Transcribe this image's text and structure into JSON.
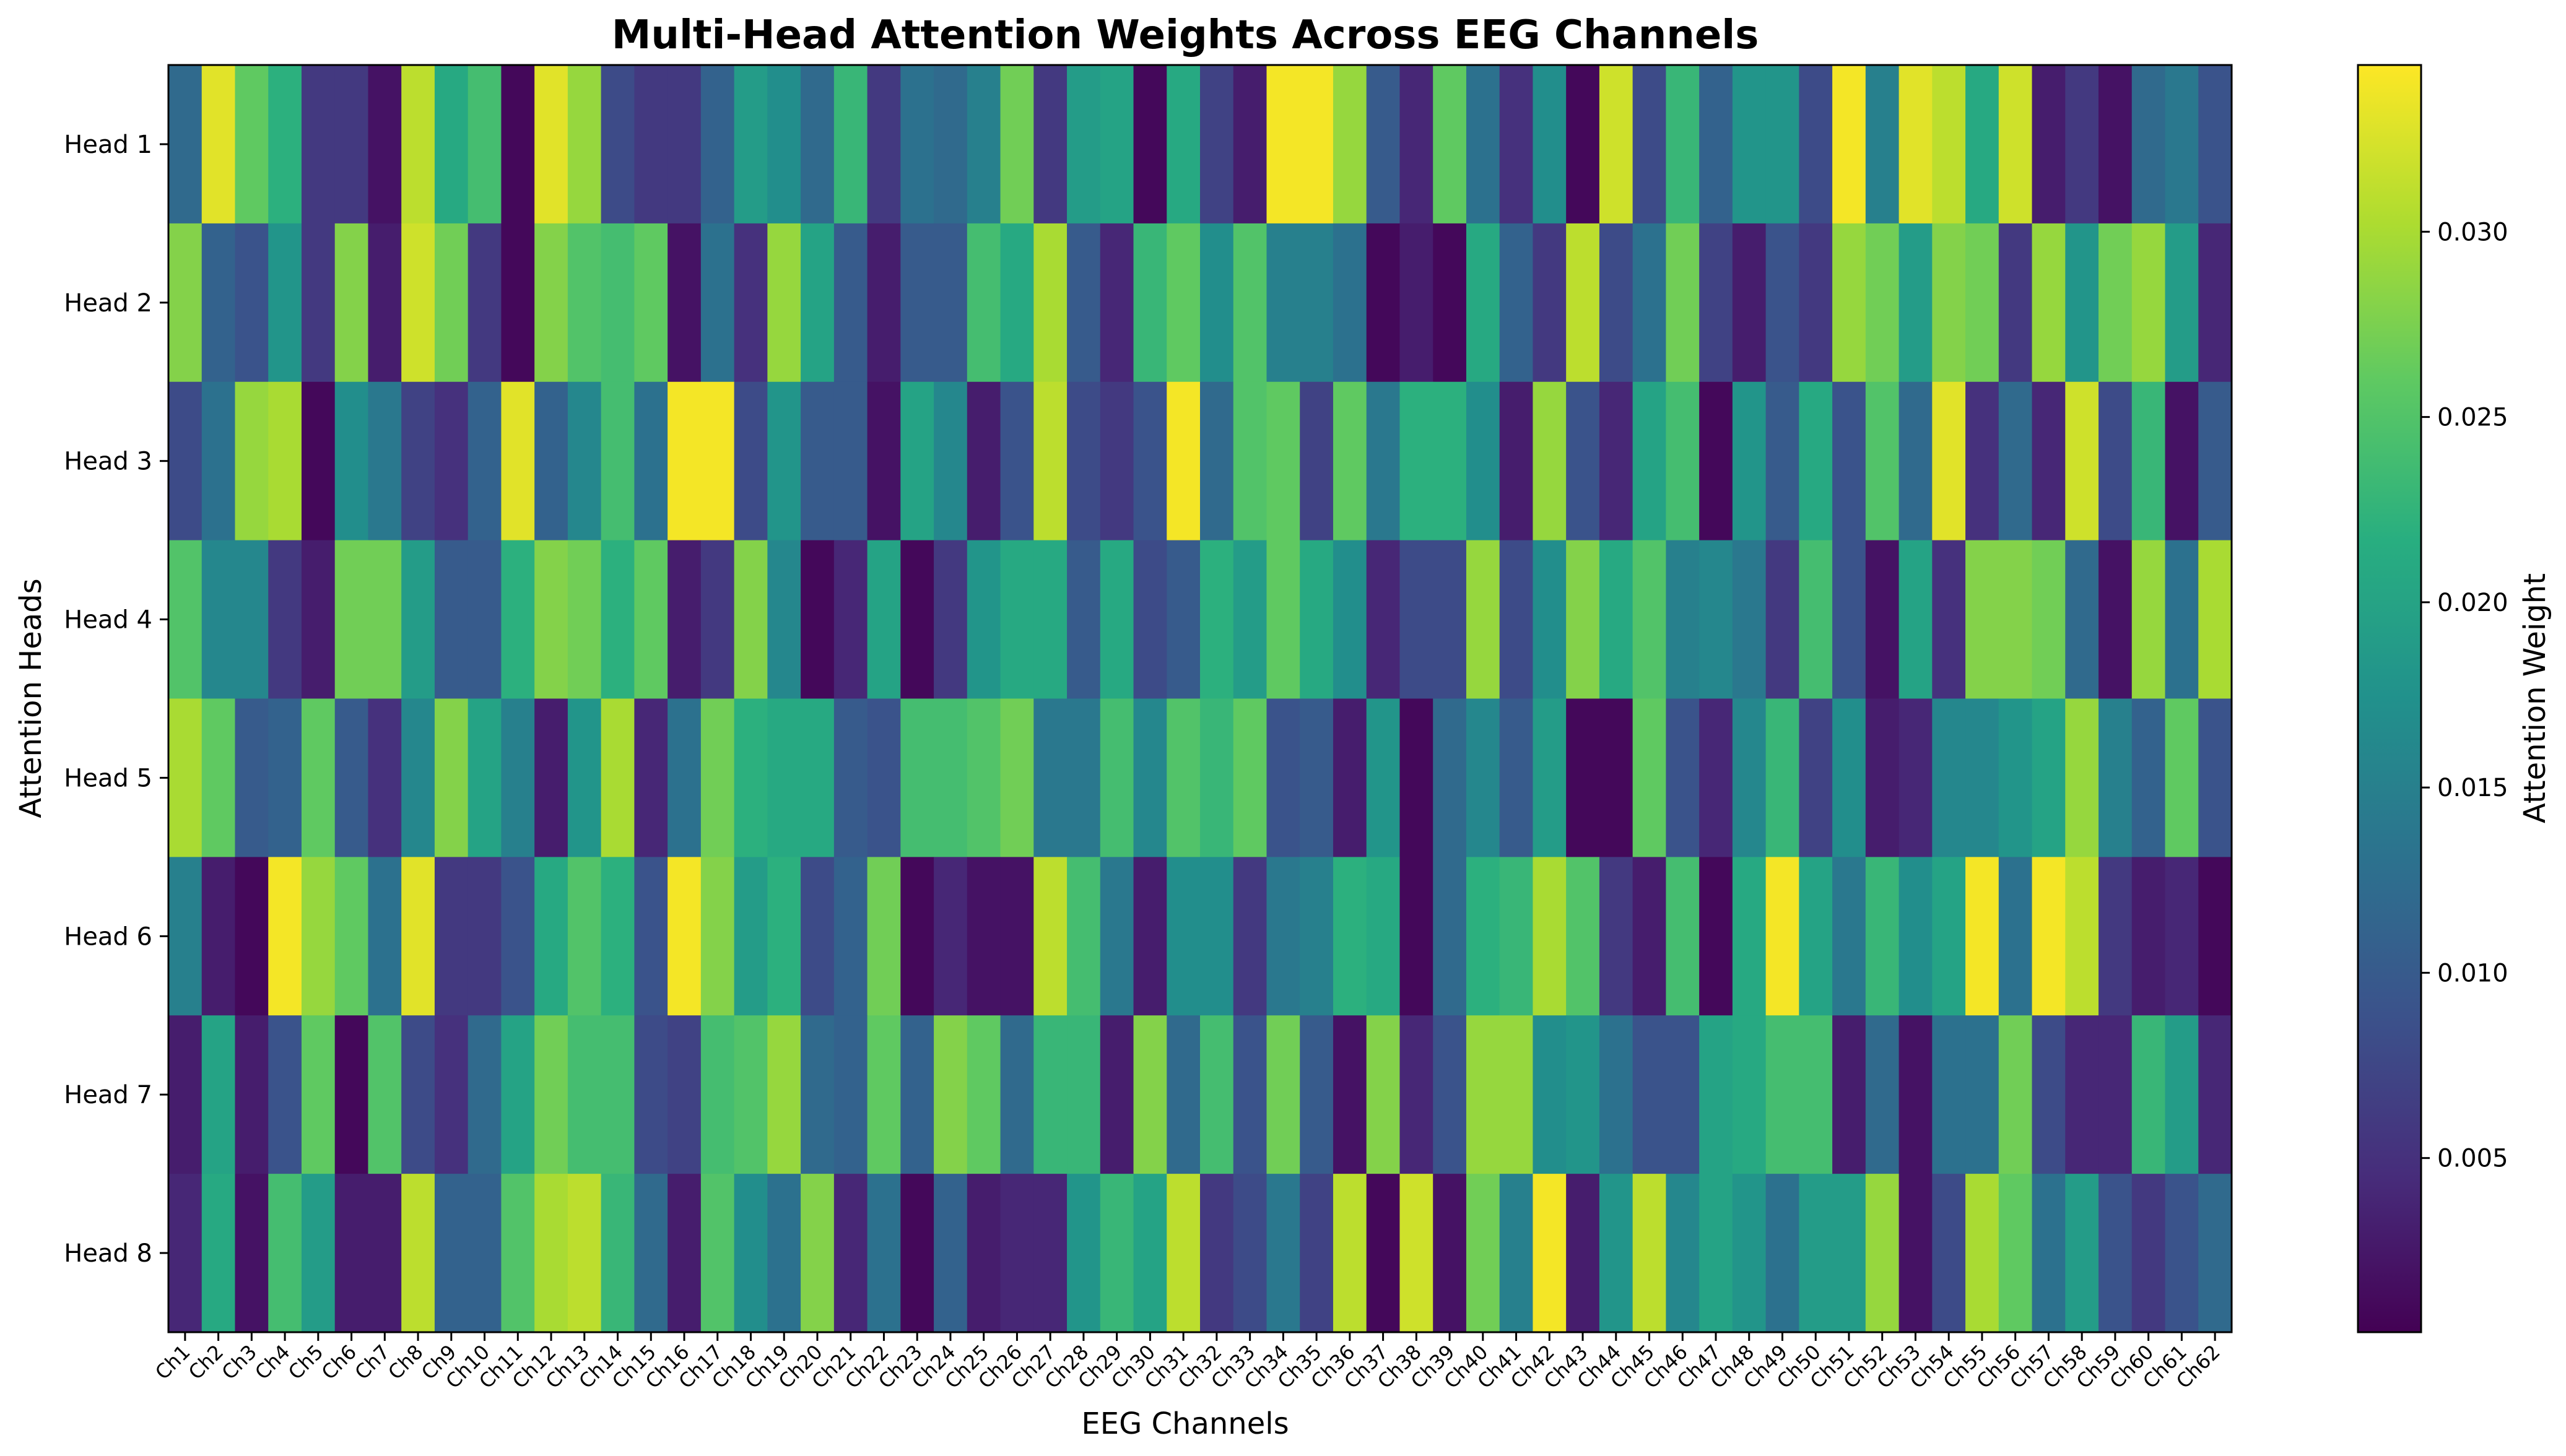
{
  "chart_data": {
    "type": "heatmap",
    "title": "Multi-Head Attention Weights Across EEG Channels",
    "xlabel": "EEG Channels",
    "ylabel": "Attention Heads",
    "colorbar_label": "Attention Weight",
    "colormap": "viridis",
    "value_range": [
      0.0003,
      0.0345
    ],
    "colorbar_ticks": [
      "0.005",
      "0.010",
      "0.015",
      "0.020",
      "0.025",
      "0.030"
    ],
    "colorbar_tick_values": [
      0.005,
      0.01,
      0.015,
      0.02,
      0.025,
      0.03
    ],
    "rows": [
      "Head 1",
      "Head 2",
      "Head 3",
      "Head 4",
      "Head 5",
      "Head 6",
      "Head 7",
      "Head 8"
    ],
    "columns": [
      "Ch1",
      "Ch2",
      "Ch3",
      "Ch4",
      "Ch5",
      "Ch6",
      "Ch7",
      "Ch8",
      "Ch9",
      "Ch10",
      "Ch11",
      "Ch12",
      "Ch13",
      "Ch14",
      "Ch15",
      "Ch16",
      "Ch17",
      "Ch18",
      "Ch19",
      "Ch20",
      "Ch21",
      "Ch22",
      "Ch23",
      "Ch24",
      "Ch25",
      "Ch26",
      "Ch27",
      "Ch28",
      "Ch29",
      "Ch30",
      "Ch31",
      "Ch32",
      "Ch33",
      "Ch34",
      "Ch35",
      "Ch36",
      "Ch37",
      "Ch38",
      "Ch39",
      "Ch40",
      "Ch41",
      "Ch42",
      "Ch43",
      "Ch44",
      "Ch45",
      "Ch46",
      "Ch47",
      "Ch48",
      "Ch49",
      "Ch50",
      "Ch51",
      "Ch52",
      "Ch53",
      "Ch54",
      "Ch55",
      "Ch56",
      "Ch57",
      "Ch58",
      "Ch59",
      "Ch60",
      "Ch61",
      "Ch62"
    ],
    "values": [
      [
        0.012,
        0.033,
        0.026,
        0.022,
        0.006,
        0.006,
        0.002,
        0.031,
        0.021,
        0.024,
        0.001,
        0.033,
        0.029,
        0.008,
        0.006,
        0.006,
        0.011,
        0.019,
        0.017,
        0.012,
        0.023,
        0.006,
        0.013,
        0.012,
        0.015,
        0.027,
        0.006,
        0.019,
        0.02,
        0.001,
        0.021,
        0.007,
        0.003,
        0.034,
        0.034,
        0.029,
        0.01,
        0.004,
        0.026,
        0.013,
        0.005,
        0.017,
        0.001,
        0.032,
        0.008,
        0.023,
        0.011,
        0.018,
        0.018,
        0.008,
        0.034,
        0.015,
        0.033,
        0.031,
        0.021,
        0.032,
        0.003,
        0.006,
        0.002,
        0.012,
        0.014,
        0.009
      ],
      [
        0.028,
        0.011,
        0.009,
        0.018,
        0.006,
        0.028,
        0.003,
        0.032,
        0.027,
        0.006,
        0.001,
        0.028,
        0.025,
        0.024,
        0.026,
        0.002,
        0.013,
        0.005,
        0.029,
        0.02,
        0.01,
        0.003,
        0.01,
        0.01,
        0.024,
        0.021,
        0.03,
        0.01,
        0.004,
        0.023,
        0.026,
        0.017,
        0.025,
        0.015,
        0.015,
        0.013,
        0.001,
        0.003,
        0.001,
        0.021,
        0.011,
        0.006,
        0.031,
        0.008,
        0.013,
        0.027,
        0.007,
        0.003,
        0.009,
        0.006,
        0.029,
        0.027,
        0.019,
        0.028,
        0.027,
        0.006,
        0.029,
        0.018,
        0.027,
        0.029,
        0.019,
        0.004
      ],
      [
        0.008,
        0.013,
        0.029,
        0.03,
        0.001,
        0.017,
        0.014,
        0.007,
        0.005,
        0.011,
        0.033,
        0.011,
        0.016,
        0.024,
        0.013,
        0.034,
        0.034,
        0.008,
        0.018,
        0.01,
        0.01,
        0.002,
        0.02,
        0.016,
        0.003,
        0.009,
        0.031,
        0.008,
        0.006,
        0.009,
        0.034,
        0.012,
        0.025,
        0.026,
        0.007,
        0.026,
        0.014,
        0.022,
        0.022,
        0.017,
        0.003,
        0.029,
        0.009,
        0.004,
        0.02,
        0.024,
        0.001,
        0.018,
        0.01,
        0.021,
        0.009,
        0.025,
        0.012,
        0.033,
        0.005,
        0.012,
        0.004,
        0.032,
        0.008,
        0.023,
        0.002,
        0.01
      ],
      [
        0.025,
        0.016,
        0.016,
        0.006,
        0.003,
        0.027,
        0.027,
        0.019,
        0.01,
        0.01,
        0.022,
        0.028,
        0.027,
        0.022,
        0.026,
        0.003,
        0.006,
        0.028,
        0.016,
        0.001,
        0.004,
        0.02,
        0.001,
        0.006,
        0.018,
        0.021,
        0.021,
        0.01,
        0.021,
        0.008,
        0.01,
        0.022,
        0.019,
        0.026,
        0.021,
        0.017,
        0.004,
        0.008,
        0.008,
        0.029,
        0.008,
        0.017,
        0.028,
        0.021,
        0.025,
        0.015,
        0.016,
        0.014,
        0.006,
        0.024,
        0.009,
        0.002,
        0.02,
        0.005,
        0.028,
        0.028,
        0.027,
        0.012,
        0.002,
        0.029,
        0.013,
        0.03
      ],
      [
        0.03,
        0.026,
        0.01,
        0.011,
        0.026,
        0.01,
        0.005,
        0.016,
        0.028,
        0.02,
        0.015,
        0.003,
        0.018,
        0.03,
        0.004,
        0.013,
        0.027,
        0.022,
        0.021,
        0.021,
        0.01,
        0.009,
        0.024,
        0.024,
        0.025,
        0.027,
        0.014,
        0.014,
        0.024,
        0.016,
        0.025,
        0.023,
        0.026,
        0.009,
        0.01,
        0.003,
        0.018,
        0.001,
        0.012,
        0.016,
        0.01,
        0.019,
        0.001,
        0.001,
        0.026,
        0.009,
        0.004,
        0.016,
        0.023,
        0.007,
        0.017,
        0.003,
        0.004,
        0.016,
        0.016,
        0.018,
        0.02,
        0.029,
        0.015,
        0.011,
        0.026,
        0.009
      ],
      [
        0.015,
        0.003,
        0.001,
        0.034,
        0.029,
        0.026,
        0.013,
        0.033,
        0.006,
        0.006,
        0.009,
        0.021,
        0.025,
        0.022,
        0.009,
        0.034,
        0.028,
        0.019,
        0.022,
        0.008,
        0.011,
        0.027,
        0.001,
        0.004,
        0.002,
        0.002,
        0.031,
        0.024,
        0.014,
        0.003,
        0.017,
        0.017,
        0.006,
        0.014,
        0.015,
        0.022,
        0.021,
        0.001,
        0.012,
        0.022,
        0.023,
        0.03,
        0.025,
        0.006,
        0.003,
        0.024,
        0.001,
        0.021,
        0.034,
        0.02,
        0.014,
        0.023,
        0.017,
        0.02,
        0.034,
        0.013,
        0.034,
        0.031,
        0.006,
        0.003,
        0.004,
        0.001
      ],
      [
        0.003,
        0.02,
        0.003,
        0.009,
        0.026,
        0.001,
        0.025,
        0.008,
        0.005,
        0.012,
        0.02,
        0.027,
        0.024,
        0.024,
        0.008,
        0.007,
        0.024,
        0.025,
        0.029,
        0.012,
        0.011,
        0.026,
        0.011,
        0.028,
        0.026,
        0.012,
        0.023,
        0.023,
        0.003,
        0.028,
        0.012,
        0.024,
        0.009,
        0.027,
        0.01,
        0.002,
        0.028,
        0.004,
        0.009,
        0.029,
        0.029,
        0.017,
        0.018,
        0.013,
        0.009,
        0.009,
        0.02,
        0.021,
        0.024,
        0.024,
        0.003,
        0.012,
        0.002,
        0.013,
        0.013,
        0.027,
        0.008,
        0.004,
        0.004,
        0.023,
        0.019,
        0.004
      ],
      [
        0.004,
        0.021,
        0.002,
        0.024,
        0.019,
        0.003,
        0.003,
        0.031,
        0.011,
        0.011,
        0.025,
        0.03,
        0.031,
        0.023,
        0.012,
        0.003,
        0.025,
        0.017,
        0.013,
        0.028,
        0.004,
        0.013,
        0.001,
        0.011,
        0.003,
        0.004,
        0.004,
        0.018,
        0.023,
        0.02,
        0.031,
        0.006,
        0.008,
        0.014,
        0.007,
        0.031,
        0.001,
        0.032,
        0.002,
        0.027,
        0.015,
        0.034,
        0.003,
        0.018,
        0.031,
        0.016,
        0.02,
        0.018,
        0.013,
        0.019,
        0.019,
        0.029,
        0.002,
        0.008,
        0.03,
        0.026,
        0.013,
        0.019,
        0.009,
        0.006,
        0.009,
        0.012
      ]
    ]
  }
}
